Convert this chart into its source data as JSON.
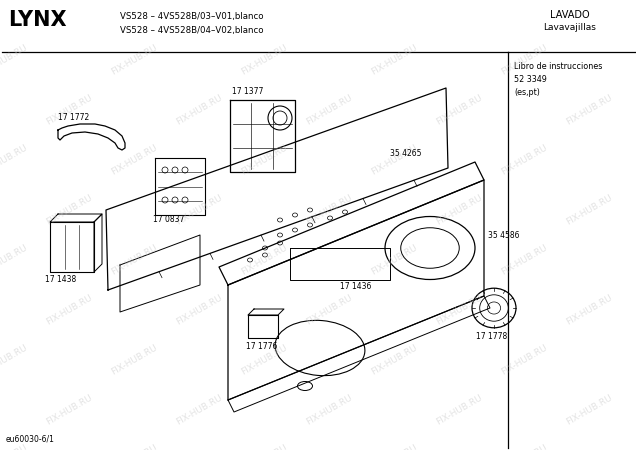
{
  "title_brand": "LYNX",
  "title_model_line1": "VS528 – 4VS528B/03–V01,blanco",
  "title_model_line2": "VS528 – 4VS528B/04–V02,blanco",
  "top_right_line1": "LAVADO",
  "top_right_line2": "Lavavajillas",
  "sidebar_text": "Libro de instrucciones\n52 3349\n(es,pt)",
  "bottom_left": "eu60030-6/1",
  "watermark": "FIX-HUB.RU",
  "bg_color": "#ffffff",
  "line_color": "#000000"
}
